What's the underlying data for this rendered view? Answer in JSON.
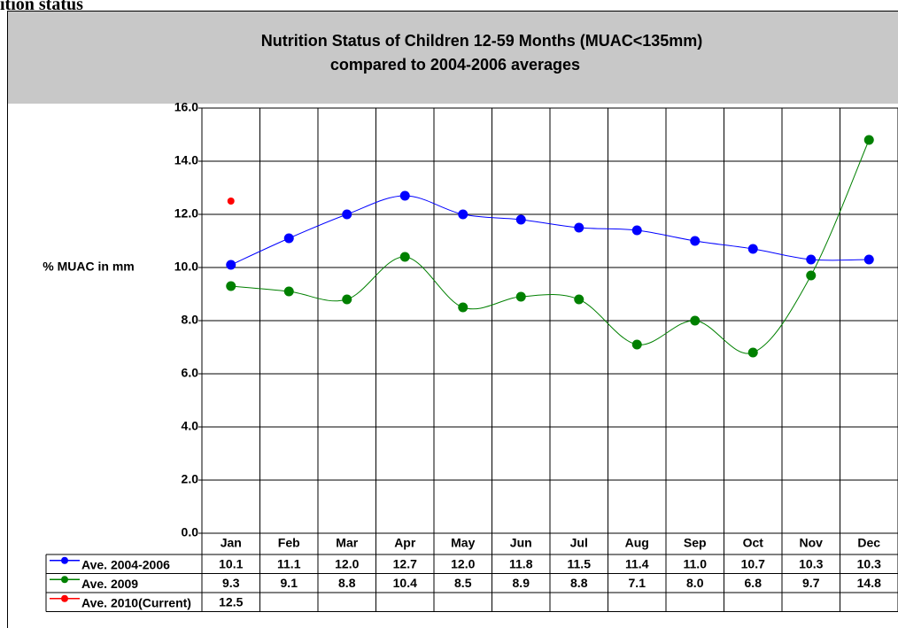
{
  "heading": "ition status",
  "chart_data": {
    "type": "line",
    "title": "Nutrition Status of Children 12-59 Months (MUAC<135mm)",
    "subtitle": "compared to 2004-2006 averages",
    "y_label": "% MUAC in mm",
    "categories": [
      "Jan",
      "Feb",
      "Mar",
      "Apr",
      "May",
      "Jun",
      "Jul",
      "Aug",
      "Sep",
      "Oct",
      "Nov",
      "Dec"
    ],
    "ylim": [
      0,
      16
    ],
    "yticks": [
      {
        "value": 0,
        "label": "0.0"
      },
      {
        "value": 2,
        "label": "2.0"
      },
      {
        "value": 4,
        "label": "4.0"
      },
      {
        "value": 6,
        "label": "6.0"
      },
      {
        "value": 8,
        "label": "8.0"
      },
      {
        "value": 10,
        "label": "10.0"
      },
      {
        "value": 12,
        "label": "12.0"
      },
      {
        "value": 14,
        "label": "14.0"
      },
      {
        "value": 16,
        "label": "16.0"
      }
    ],
    "grid": true,
    "series": [
      {
        "name": "Ave. 2004-2006",
        "color": "#0000ff",
        "values": [
          10.1,
          11.1,
          12.0,
          12.7,
          12.0,
          11.8,
          11.5,
          11.4,
          11.0,
          10.7,
          10.3,
          10.3
        ],
        "value_labels": [
          "10.1",
          "11.1",
          "12.0",
          "12.7",
          "12.0",
          "11.8",
          "11.5",
          "11.4",
          "11.0",
          "10.7",
          "10.3",
          "10.3"
        ]
      },
      {
        "name": "Ave. 2009",
        "color": "#008000",
        "values": [
          9.3,
          9.1,
          8.8,
          10.4,
          8.5,
          8.9,
          8.8,
          7.1,
          8.0,
          6.8,
          9.7,
          14.8
        ],
        "value_labels": [
          "9.3",
          "9.1",
          "8.8",
          "10.4",
          "8.5",
          "8.9",
          "8.8",
          "7.1",
          "8.0",
          "6.8",
          "9.7",
          "14.8"
        ]
      },
      {
        "name": "Ave. 2010(Current)",
        "color": "#ff0000",
        "values": [
          12.5,
          null,
          null,
          null,
          null,
          null,
          null,
          null,
          null,
          null,
          null,
          null
        ],
        "value_labels": [
          "12.5",
          null,
          null,
          null,
          null,
          null,
          null,
          null,
          null,
          null,
          null,
          null
        ]
      }
    ]
  }
}
